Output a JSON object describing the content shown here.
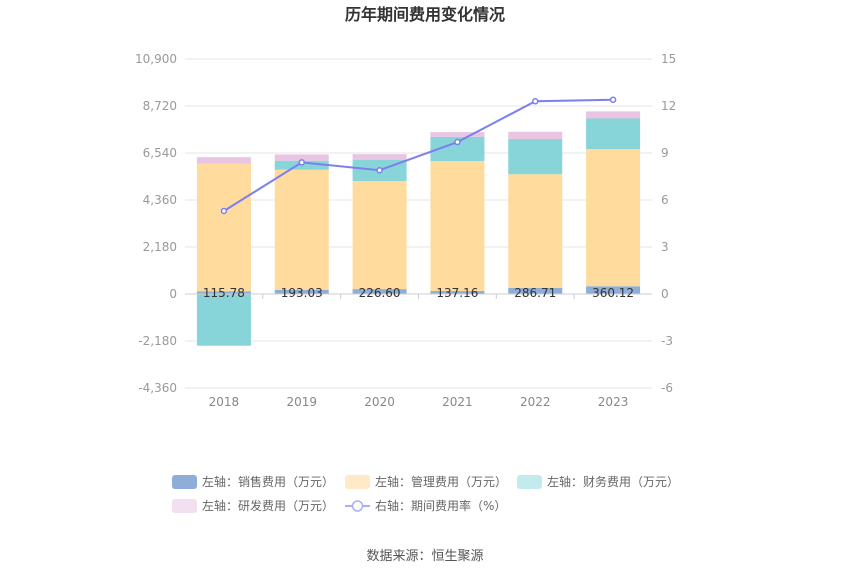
{
  "chart_data": {
    "type": "bar",
    "title": "历年期间费用变化情况",
    "source": "数据来源：恒生聚源",
    "categories": [
      "2018",
      "2019",
      "2020",
      "2021",
      "2022",
      "2023"
    ],
    "left_axis": {
      "ylim": [
        -4360,
        10900
      ],
      "ticks": [
        10900,
        8720,
        6540,
        4360,
        2180,
        0,
        -2180,
        -4360
      ],
      "tick_labels": [
        "10,900",
        "8,720",
        "6,540",
        "4,360",
        "2,180",
        "0",
        "-2,180",
        "-4,360"
      ]
    },
    "right_axis": {
      "ylim": [
        -6,
        15
      ],
      "ticks": [
        15,
        12,
        9,
        6,
        3,
        0,
        -3,
        -6
      ],
      "tick_labels": [
        "15",
        "12",
        "9",
        "6",
        "3",
        "0",
        "-3",
        "-6"
      ]
    },
    "series": [
      {
        "name": "左轴：销售费用（万元）",
        "kind": "bar",
        "color": "#8eaed8",
        "values": [
          115.78,
          193.03,
          226.6,
          137.16,
          286.71,
          360.12
        ],
        "labels": [
          "115.78",
          "193.03",
          "226.60",
          "137.16",
          "286.71",
          "360.12"
        ]
      },
      {
        "name": "左轴：管理费用（万元）",
        "kind": "bar",
        "color": "#ffdb9e",
        "values": [
          5930,
          5570,
          5010,
          6030,
          5270,
          6360
        ]
      },
      {
        "name": "左轴：财务费用（万元）",
        "kind": "bar",
        "color": "#87d5d9",
        "values": [
          -2400,
          420,
          980,
          1120,
          1630,
          1420
        ]
      },
      {
        "name": "左轴：研发费用（万元）",
        "kind": "bar",
        "color": "#e7c5e3",
        "values": [
          300,
          290,
          270,
          220,
          340,
          330
        ]
      },
      {
        "name": "右轴：期间费用率（%）",
        "kind": "line",
        "color": "#7b7fef",
        "values": [
          5.3,
          8.4,
          7.9,
          9.7,
          12.3,
          12.4
        ]
      }
    ],
    "grid": true,
    "legend_position": "bottom"
  }
}
